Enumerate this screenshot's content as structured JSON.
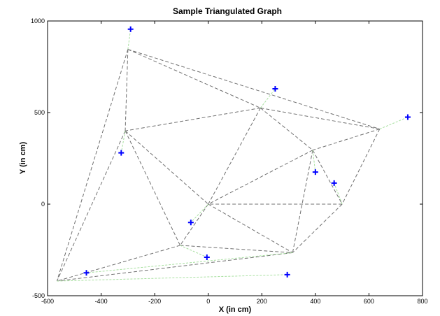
{
  "chart_data": {
    "type": "scatter",
    "title": "Sample Triangulated Graph",
    "xlabel": "X (in cm)",
    "ylabel": "Y (in cm)",
    "xlim": [
      -600,
      800
    ],
    "ylim": [
      -500,
      1000
    ],
    "xticks": [
      -600,
      -400,
      -200,
      0,
      200,
      400,
      600,
      800
    ],
    "yticks": [
      -500,
      0,
      500,
      1000
    ],
    "xtick_labels": [
      "-600",
      "-400",
      "-200",
      "0",
      "200",
      "400",
      "600",
      "800"
    ],
    "ytick_labels": [
      "-500",
      "0",
      "500",
      "1000"
    ],
    "grid": false,
    "series": [
      {
        "marker": "+",
        "color": "#0000ff",
        "points": [
          {
            "x": -290,
            "y": 955
          },
          {
            "x": 250,
            "y": 630
          },
          {
            "x": 745,
            "y": 475
          },
          {
            "x": -325,
            "y": 280
          },
          {
            "x": 400,
            "y": 175
          },
          {
            "x": 470,
            "y": 115
          },
          {
            "x": -65,
            "y": -100
          },
          {
            "x": -5,
            "y": -290
          },
          {
            "x": -455,
            "y": -375
          },
          {
            "x": 295,
            "y": -385
          }
        ]
      }
    ],
    "nodes": [
      {
        "x": -300,
        "y": 845
      },
      {
        "x": 195,
        "y": 525
      },
      {
        "x": 640,
        "y": 410
      },
      {
        "x": -310,
        "y": 400
      },
      {
        "x": 390,
        "y": 295
      },
      {
        "x": 500,
        "y": 0
      },
      {
        "x": 0,
        "y": 0
      },
      {
        "x": -105,
        "y": -225
      },
      {
        "x": 315,
        "y": -265
      },
      {
        "x": -565,
        "y": -420
      }
    ],
    "triangle_edges": [
      [
        0,
        1
      ],
      [
        0,
        2
      ],
      [
        0,
        3
      ],
      [
        0,
        9
      ],
      [
        1,
        2
      ],
      [
        1,
        3
      ],
      [
        1,
        4
      ],
      [
        1,
        6
      ],
      [
        2,
        4
      ],
      [
        2,
        5
      ],
      [
        3,
        6
      ],
      [
        3,
        7
      ],
      [
        3,
        9
      ],
      [
        4,
        5
      ],
      [
        4,
        6
      ],
      [
        4,
        8
      ],
      [
        5,
        6
      ],
      [
        5,
        8
      ],
      [
        6,
        7
      ],
      [
        6,
        8
      ],
      [
        7,
        8
      ],
      [
        7,
        9
      ],
      [
        8,
        9
      ]
    ],
    "assignment_edges": [
      [
        0,
        0
      ],
      [
        1,
        1
      ],
      [
        2,
        2
      ],
      [
        3,
        3
      ],
      [
        4,
        4
      ],
      [
        5,
        5
      ],
      [
        6,
        6
      ],
      [
        7,
        7
      ],
      [
        8,
        8
      ],
      [
        9,
        9
      ]
    ],
    "colors": {
      "triangle_edge": "#707070",
      "assignment_edge": "#a8e0a0",
      "marker": "#0000ff"
    }
  }
}
